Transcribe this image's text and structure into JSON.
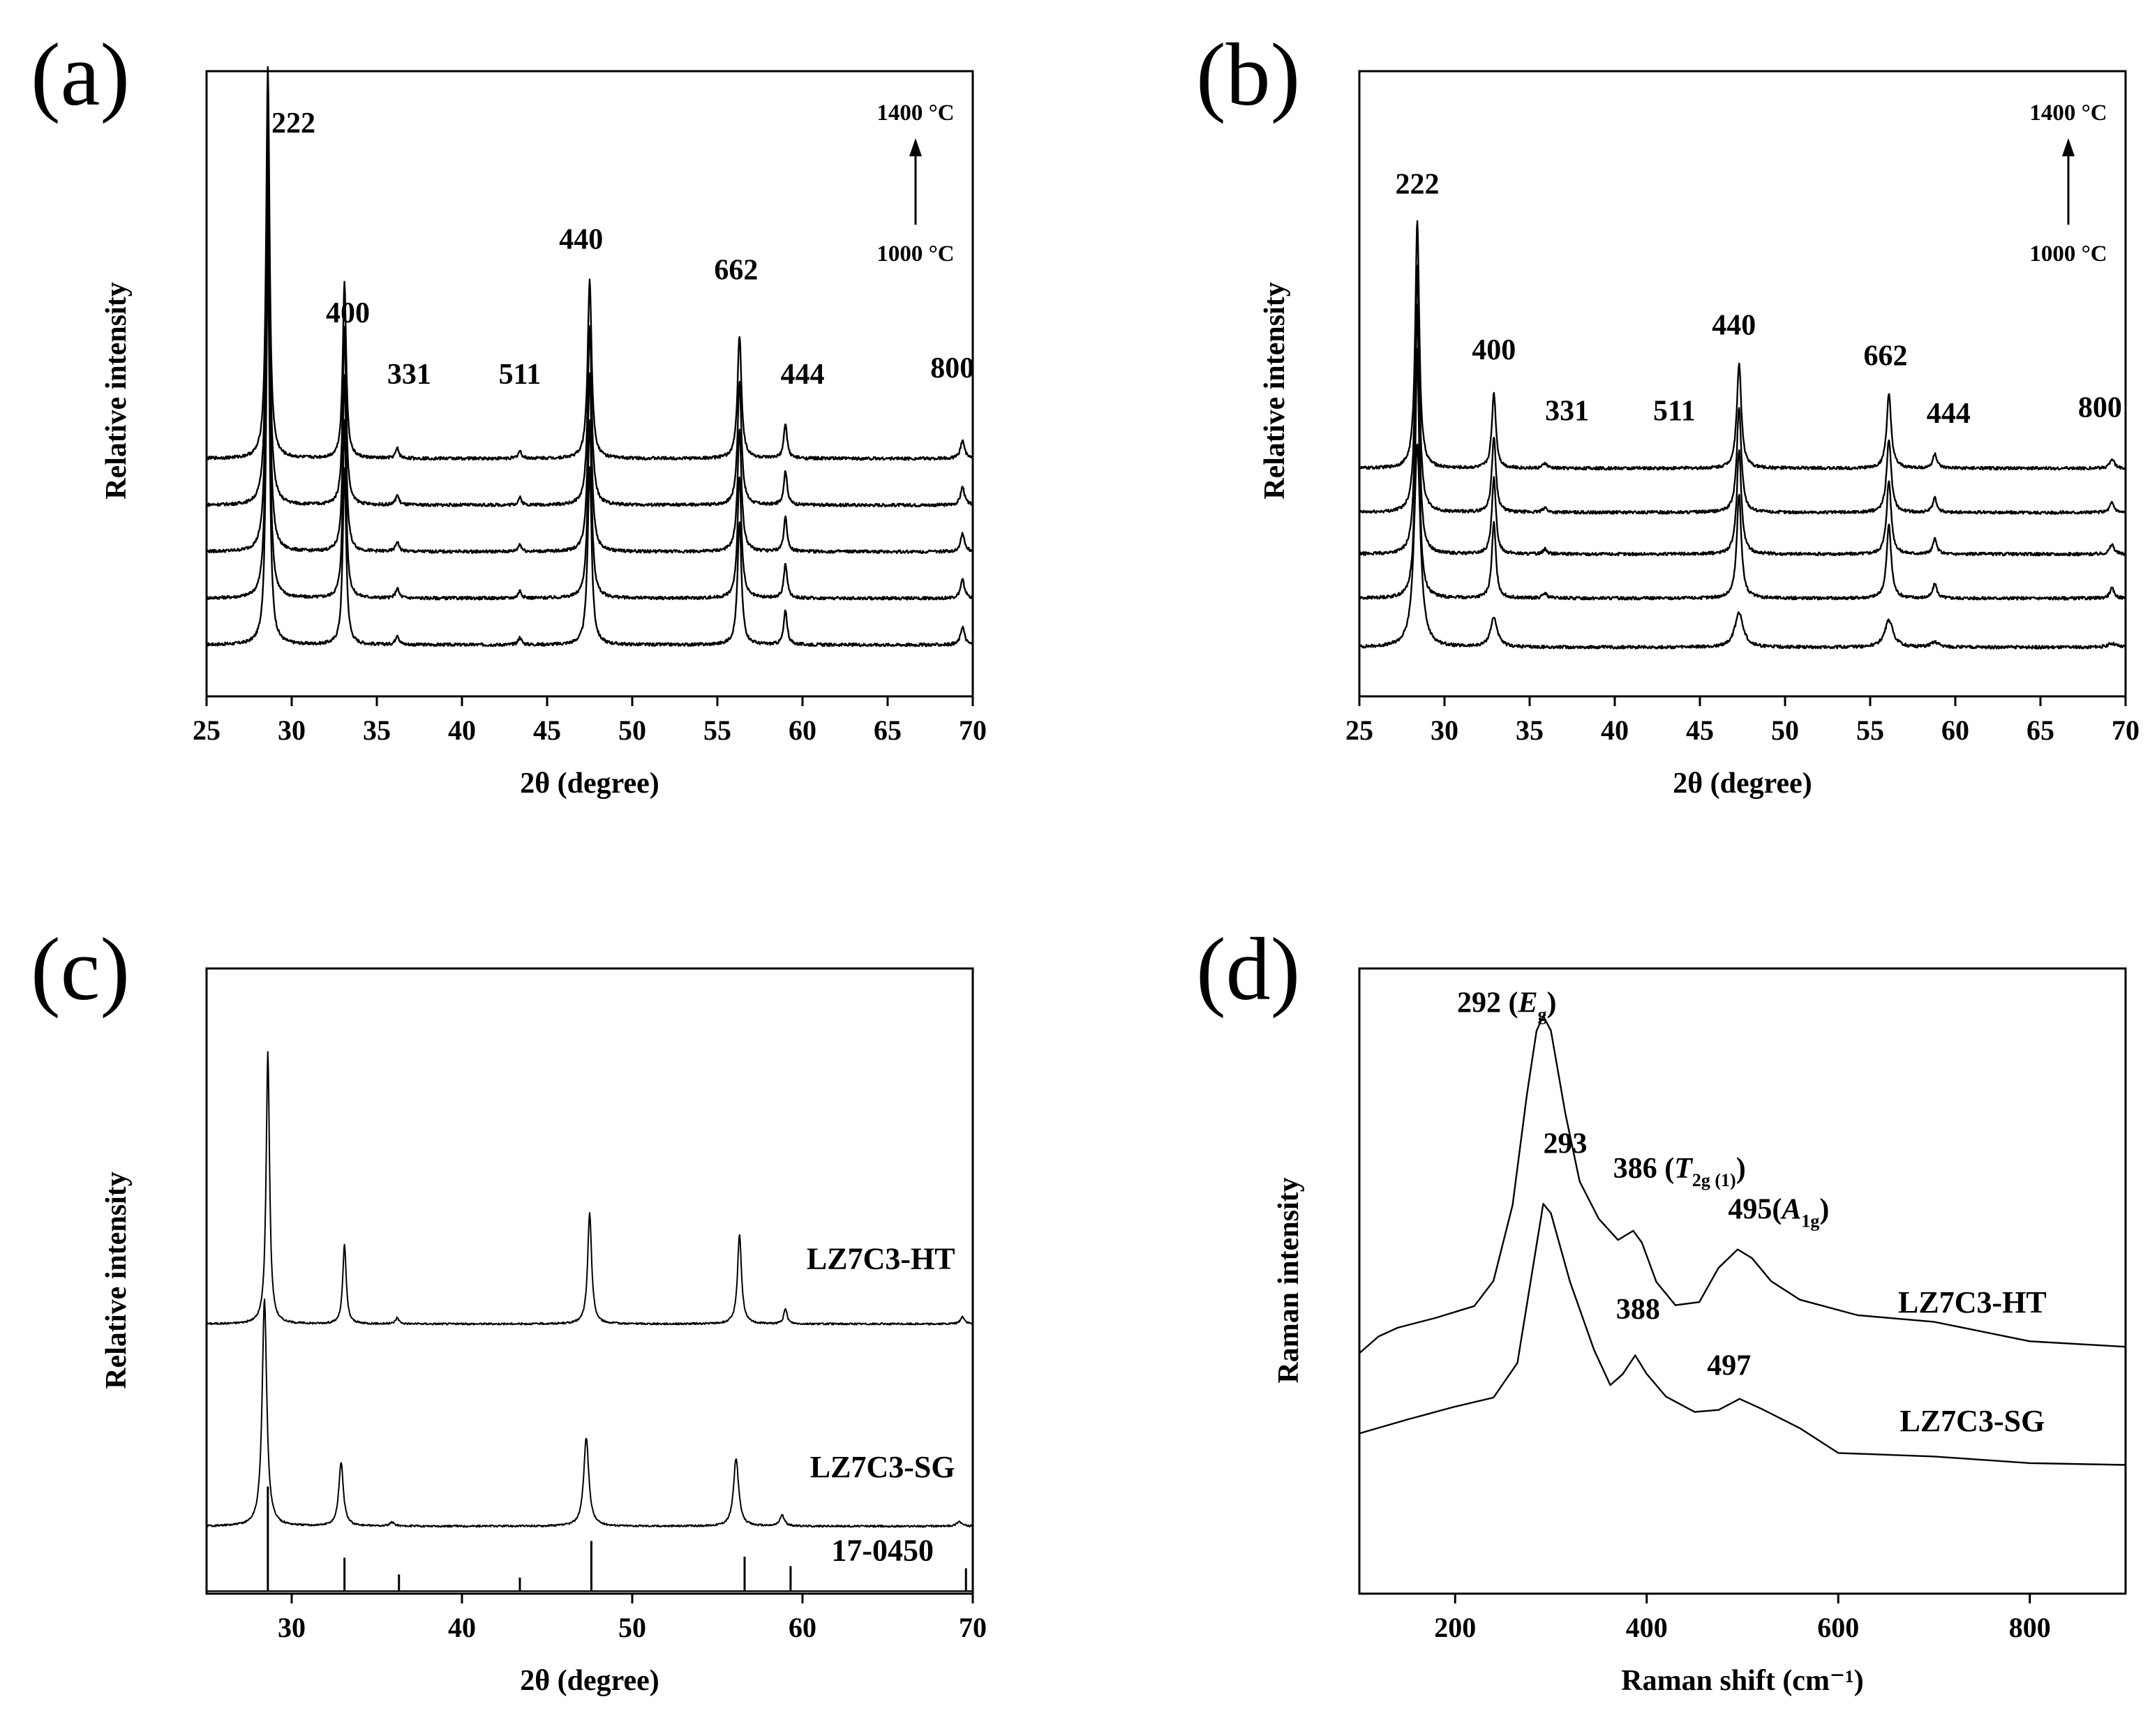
{
  "chart_data": [
    {
      "id": "a",
      "type": "line",
      "panel_label": "(a)",
      "xlabel": "2θ (degree)",
      "ylabel": "Relative intensity",
      "xlim": [
        25,
        70
      ],
      "xticks": [
        25,
        30,
        35,
        40,
        45,
        50,
        55,
        60,
        65,
        70
      ],
      "ylim": [
        0,
        5.1
      ],
      "series_count": 5,
      "baselines": [
        0.42,
        0.8,
        1.18,
        1.56,
        1.94
      ],
      "peaks": [
        {
          "x": 28.6,
          "h": 3.2,
          "w": 0.12
        },
        {
          "x": 33.1,
          "h": 1.45,
          "w": 0.12
        },
        {
          "x": 36.2,
          "h": 0.08,
          "w": 0.12
        },
        {
          "x": 43.4,
          "h": 0.06,
          "w": 0.12
        },
        {
          "x": 47.5,
          "h": 1.45,
          "w": 0.14
        },
        {
          "x": 56.3,
          "h": 1.0,
          "w": 0.14
        },
        {
          "x": 59.0,
          "h": 0.28,
          "w": 0.12
        },
        {
          "x": 69.4,
          "h": 0.15,
          "w": 0.14
        }
      ],
      "peak_labels": [
        {
          "text": "222",
          "x": 30.1,
          "y": 4.6
        },
        {
          "text": "400",
          "x": 33.3,
          "y": 3.05
        },
        {
          "text": "331",
          "x": 36.9,
          "y": 2.55
        },
        {
          "text": "511",
          "x": 43.4,
          "y": 2.55
        },
        {
          "text": "440",
          "x": 47.0,
          "y": 3.65
        },
        {
          "text": "662",
          "x": 56.1,
          "y": 3.4
        },
        {
          "text": "444",
          "x": 60.0,
          "y": 2.55
        },
        {
          "text": "800",
          "x": 68.8,
          "y": 2.6
        }
      ],
      "temperature_labels": {
        "top": "1400 °C",
        "bottom": "1000 °C"
      }
    },
    {
      "id": "b",
      "type": "line",
      "panel_label": "(b)",
      "xlabel": "2θ (degree)",
      "ylabel": "Relative intensity",
      "xlim": [
        25,
        70
      ],
      "xticks": [
        25,
        30,
        35,
        40,
        45,
        50,
        55,
        60,
        65,
        70
      ],
      "ylim": [
        0,
        5.1
      ],
      "series_count": 5,
      "baselines": [
        0.4,
        0.8,
        1.16,
        1.5,
        1.86
      ],
      "peaks": [
        {
          "x": 28.4,
          "h": 2.03,
          "w": 0.14
        },
        {
          "x": 32.9,
          "h": 0.62,
          "w": 0.14
        },
        {
          "x": 35.9,
          "h": 0.04,
          "w": 0.14
        },
        {
          "x": 47.3,
          "h": 0.85,
          "w": 0.16
        },
        {
          "x": 56.1,
          "h": 0.6,
          "w": 0.16
        },
        {
          "x": 58.8,
          "h": 0.12,
          "w": 0.14
        },
        {
          "x": 69.2,
          "h": 0.08,
          "w": 0.16
        }
      ],
      "lowest_series_peaks": [
        {
          "x": 28.4,
          "h": 1.65,
          "w": 0.22
        },
        {
          "x": 32.9,
          "h": 0.24,
          "w": 0.24
        },
        {
          "x": 47.3,
          "h": 0.28,
          "w": 0.3
        },
        {
          "x": 56.1,
          "h": 0.22,
          "w": 0.3
        },
        {
          "x": 58.8,
          "h": 0.04,
          "w": 0.3
        },
        {
          "x": 69.2,
          "h": 0.03,
          "w": 0.3
        }
      ],
      "peak_labels": [
        {
          "text": "222",
          "x": 28.4,
          "y": 4.1
        },
        {
          "text": "400",
          "x": 32.9,
          "y": 2.75
        },
        {
          "text": "331",
          "x": 37.2,
          "y": 2.25
        },
        {
          "text": "511",
          "x": 43.5,
          "y": 2.25
        },
        {
          "text": "440",
          "x": 47.0,
          "y": 2.95
        },
        {
          "text": "662",
          "x": 55.9,
          "y": 2.7
        },
        {
          "text": "444",
          "x": 59.6,
          "y": 2.23
        },
        {
          "text": "800",
          "x": 68.5,
          "y": 2.28
        }
      ],
      "temperature_labels": {
        "top": "1400 °C",
        "bottom": "1000 °C"
      }
    },
    {
      "id": "c",
      "type": "line",
      "panel_label": "(c)",
      "xlabel": "2θ (degree)",
      "ylabel": "Relative intensity",
      "xlim": [
        25,
        70
      ],
      "xticks": [
        30,
        40,
        50,
        60,
        70
      ],
      "ylim": [
        0,
        5.1
      ],
      "series": [
        {
          "name": "LZ7C3-HT",
          "baseline": 2.2,
          "peaks": [
            {
              "x": 28.6,
              "h": 2.22,
              "w": 0.12
            },
            {
              "x": 33.1,
              "h": 0.65,
              "w": 0.12
            },
            {
              "x": 36.2,
              "h": 0.05,
              "w": 0.12
            },
            {
              "x": 47.5,
              "h": 0.9,
              "w": 0.14
            },
            {
              "x": 56.3,
              "h": 0.73,
              "w": 0.14
            },
            {
              "x": 59.0,
              "h": 0.12,
              "w": 0.12
            },
            {
              "x": 69.4,
              "h": 0.06,
              "w": 0.14
            }
          ]
        },
        {
          "name": "LZ7C3-SG",
          "baseline": 0.55,
          "peaks": [
            {
              "x": 28.4,
              "h": 1.86,
              "w": 0.16
            },
            {
              "x": 32.9,
              "h": 0.52,
              "w": 0.16
            },
            {
              "x": 35.9,
              "h": 0.03,
              "w": 0.16
            },
            {
              "x": 47.3,
              "h": 0.72,
              "w": 0.18
            },
            {
              "x": 56.1,
              "h": 0.55,
              "w": 0.18
            },
            {
              "x": 58.8,
              "h": 0.09,
              "w": 0.16
            },
            {
              "x": 69.2,
              "h": 0.04,
              "w": 0.18
            }
          ]
        }
      ],
      "reference_pattern": {
        "name": "17-0450",
        "sticks": [
          {
            "x": 28.6,
            "h": 1.0
          },
          {
            "x": 33.1,
            "h": 0.32
          },
          {
            "x": 36.3,
            "h": 0.16
          },
          {
            "x": 43.4,
            "h": 0.13
          },
          {
            "x": 47.6,
            "h": 0.48
          },
          {
            "x": 56.6,
            "h": 0.33
          },
          {
            "x": 59.3,
            "h": 0.24
          },
          {
            "x": 69.6,
            "h": 0.22
          }
        ]
      },
      "sample_labels": [
        {
          "text": "LZ7C3-HT",
          "x": 64.6,
          "y": 2.65
        },
        {
          "text": "LZ7C3-SG",
          "x": 64.7,
          "y": 0.95
        },
        {
          "text": "17-0450",
          "x": 64.7,
          "y": 0.27
        }
      ]
    },
    {
      "id": "d",
      "type": "line",
      "panel_label": "(d)",
      "xlabel": "Raman shift (cm⁻¹)",
      "ylabel": "Raman intensity",
      "xlim": [
        100,
        900
      ],
      "xticks": [
        200,
        400,
        600,
        800
      ],
      "ylim": [
        0,
        1
      ],
      "series": [
        {
          "name": "LZ7C3-HT",
          "points": [
            [
              100,
              0.385
            ],
            [
              120,
              0.41
            ],
            [
              140,
              0.425
            ],
            [
              180,
              0.44
            ],
            [
              220,
              0.46
            ],
            [
              240,
              0.5
            ],
            [
              260,
              0.62
            ],
            [
              275,
              0.8
            ],
            [
              285,
              0.9
            ],
            [
              292,
              0.925
            ],
            [
              300,
              0.9
            ],
            [
              315,
              0.77
            ],
            [
              330,
              0.66
            ],
            [
              350,
              0.6
            ],
            [
              370,
              0.565
            ],
            [
              386,
              0.58
            ],
            [
              395,
              0.56
            ],
            [
              410,
              0.5
            ],
            [
              430,
              0.46
            ],
            [
              455,
              0.465
            ],
            [
              475,
              0.52
            ],
            [
              495,
              0.55
            ],
            [
              510,
              0.535
            ],
            [
              530,
              0.5
            ],
            [
              560,
              0.47
            ],
            [
              620,
              0.445
            ],
            [
              700,
              0.435
            ],
            [
              800,
              0.405
            ],
            [
              900,
              0.395
            ]
          ]
        },
        {
          "name": "LZ7C3-SG",
          "points": [
            [
              100,
              0.255
            ],
            [
              150,
              0.28
            ],
            [
              200,
              0.3
            ],
            [
              240,
              0.315
            ],
            [
              265,
              0.37
            ],
            [
              280,
              0.51
            ],
            [
              292,
              0.625
            ],
            [
              300,
              0.61
            ],
            [
              320,
              0.5
            ],
            [
              345,
              0.39
            ],
            [
              362,
              0.335
            ],
            [
              375,
              0.35
            ],
            [
              388,
              0.38
            ],
            [
              400,
              0.35
            ],
            [
              420,
              0.315
            ],
            [
              450,
              0.29
            ],
            [
              475,
              0.295
            ],
            [
              497,
              0.31
            ],
            [
              520,
              0.295
            ],
            [
              560,
              0.265
            ],
            [
              600,
              0.225
            ],
            [
              700,
              0.22
            ],
            [
              800,
              0.21
            ],
            [
              900,
              0.205
            ]
          ]
        }
      ],
      "annotations": [
        {
          "text": "292 (",
          "italic": "E",
          "sub": "g",
          "close": ")",
          "x": 202,
          "y": 0.93
        },
        {
          "text": "293",
          "x": 292,
          "y": 0.705
        },
        {
          "text": "386 (",
          "italic": "T",
          "sub": "2g (1)",
          "close": ")",
          "x": 365,
          "y": 0.665
        },
        {
          "text": "495(",
          "italic": "A",
          "sub": "1g",
          "close": ")",
          "x": 485,
          "y": 0.6
        },
        {
          "text": "388",
          "x": 368,
          "y": 0.44
        },
        {
          "text": "497",
          "x": 463,
          "y": 0.35
        }
      ],
      "sample_labels": [
        {
          "text": "LZ7C3-HT",
          "x": 740,
          "y": 0.45
        },
        {
          "text": "LZ7C3-SG",
          "x": 740,
          "y": 0.26
        }
      ]
    }
  ]
}
